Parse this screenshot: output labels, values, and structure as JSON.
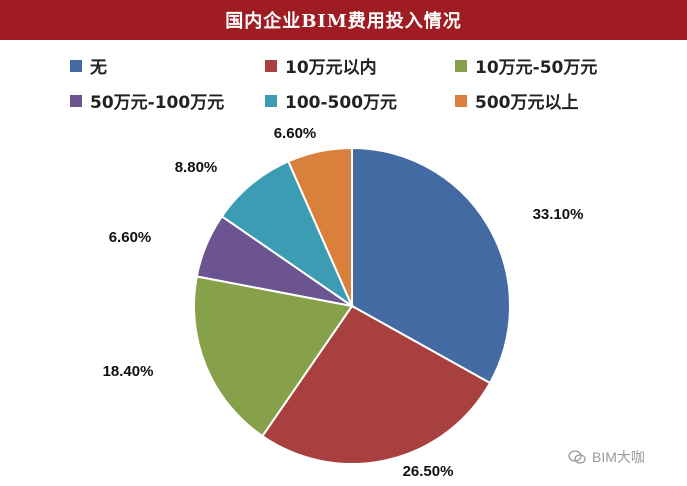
{
  "title": "国内企业BIM费用投入情况",
  "watermark": "BIM大咖",
  "chart_data": {
    "type": "pie",
    "title": "国内企业BIM费用投入情况",
    "legend_position": "top",
    "series": [
      {
        "name": "无",
        "value": 33.1,
        "label": "33.10%",
        "color": "#436aa2"
      },
      {
        "name": "10万元以内",
        "value": 26.5,
        "label": "26.50%",
        "color": "#a8403f"
      },
      {
        "name": "10万元-50万元",
        "value": 18.4,
        "label": "18.40%",
        "color": "#87a14a"
      },
      {
        "name": "50万元-100万元",
        "value": 6.6,
        "label": "6.60%",
        "color": "#6b5490"
      },
      {
        "name": "100-500万元",
        "value": 8.8,
        "label": "8.80%",
        "color": "#3c9cb3"
      },
      {
        "name": "500万元以上",
        "value": 6.6,
        "label": "6.60%",
        "color": "#d9803d"
      }
    ]
  }
}
